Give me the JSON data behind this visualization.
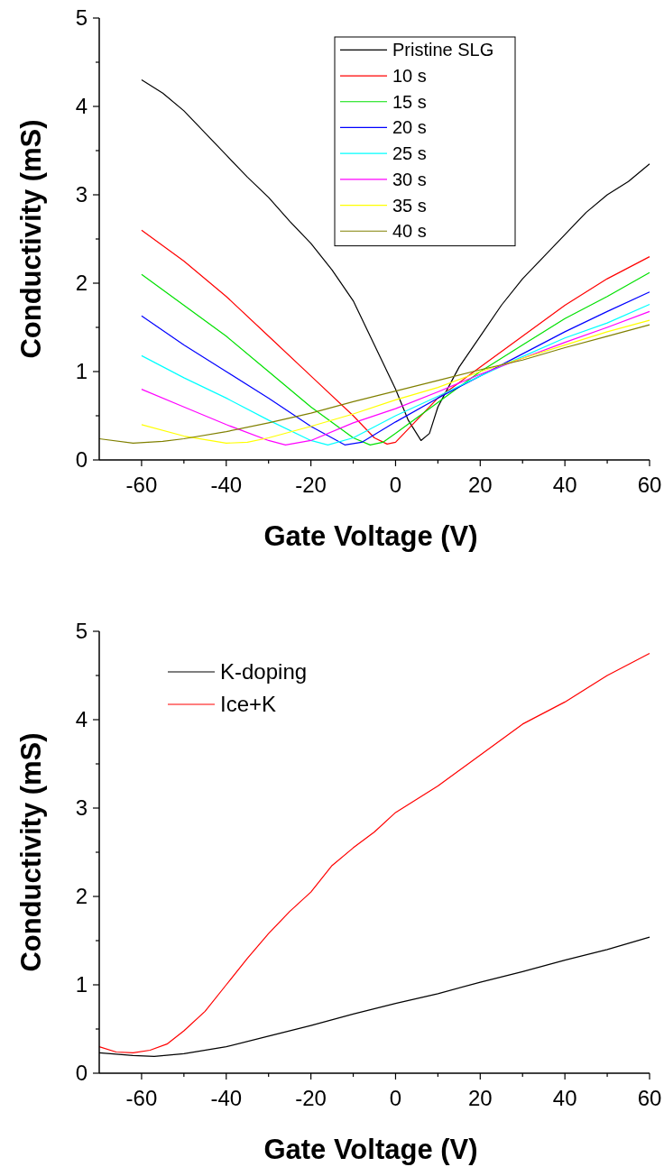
{
  "chart_data": [
    {
      "type": "line",
      "xlabel": "Gate Voltage (V)",
      "ylabel": "Conductivity (mS)",
      "xlim": [
        -70,
        60
      ],
      "ylim": [
        0,
        5
      ],
      "xticks": [
        -60,
        {
          "value": -50,
          "label": null
        },
        -40,
        {
          "value": -30,
          "label": null
        },
        -20,
        {
          "value": -10,
          "label": null
        },
        0,
        {
          "value": 10,
          "label": null
        },
        20,
        {
          "value": 30,
          "label": null
        },
        40,
        {
          "value": 50,
          "label": null
        },
        60
      ],
      "yticks": [
        0,
        {
          "value": 0.5,
          "label": null
        },
        1,
        {
          "value": 1.5,
          "label": null
        },
        2,
        {
          "value": 2.5,
          "label": null
        },
        3,
        {
          "value": 3.5,
          "label": null
        },
        4,
        {
          "value": 4.5,
          "label": null
        },
        5
      ],
      "grid": false,
      "legend": "top right",
      "line_style": "solid",
      "series": [
        {
          "name": "Pristine SLG",
          "color": "#000000",
          "x": [
            -60,
            -55,
            -50,
            -45,
            -40,
            -35,
            -30,
            -25,
            -20,
            -15,
            -10,
            -5,
            0,
            3,
            6,
            8,
            10,
            15,
            20,
            25,
            30,
            35,
            40,
            45,
            50,
            55,
            60
          ],
          "values": [
            4.3,
            4.15,
            3.95,
            3.7,
            3.45,
            3.2,
            2.97,
            2.7,
            2.45,
            2.15,
            1.8,
            1.3,
            0.8,
            0.45,
            0.22,
            0.3,
            0.6,
            1.05,
            1.4,
            1.75,
            2.05,
            2.3,
            2.55,
            2.8,
            3.0,
            3.15,
            3.35
          ]
        },
        {
          "name": "10 s",
          "color": "#ff0000",
          "x": [
            -60,
            -50,
            -40,
            -30,
            -20,
            -10,
            -5,
            -2,
            0,
            5,
            10,
            20,
            30,
            40,
            50,
            60
          ],
          "values": [
            2.6,
            2.25,
            1.85,
            1.4,
            0.95,
            0.5,
            0.25,
            0.18,
            0.2,
            0.45,
            0.7,
            1.05,
            1.4,
            1.75,
            2.05,
            2.3
          ]
        },
        {
          "name": "15 s",
          "color": "#00e000",
          "x": [
            -60,
            -50,
            -40,
            -30,
            -20,
            -10,
            -6,
            -3,
            0,
            10,
            20,
            30,
            40,
            50,
            60
          ],
          "values": [
            2.1,
            1.75,
            1.4,
            1.0,
            0.6,
            0.25,
            0.17,
            0.2,
            0.3,
            0.65,
            1.0,
            1.3,
            1.6,
            1.85,
            2.12
          ]
        },
        {
          "name": "20 s",
          "color": "#0000ff",
          "x": [
            -60,
            -50,
            -40,
            -30,
            -20,
            -12,
            -8,
            0,
            10,
            20,
            30,
            40,
            50,
            60
          ],
          "values": [
            1.63,
            1.3,
            1.0,
            0.7,
            0.38,
            0.17,
            0.2,
            0.43,
            0.7,
            0.95,
            1.2,
            1.45,
            1.68,
            1.9
          ]
        },
        {
          "name": "25 s",
          "color": "#00ffff",
          "x": [
            -60,
            -50,
            -40,
            -30,
            -20,
            -16,
            -10,
            0,
            10,
            20,
            30,
            40,
            50,
            60
          ],
          "values": [
            1.18,
            0.93,
            0.7,
            0.45,
            0.22,
            0.17,
            0.25,
            0.5,
            0.72,
            0.95,
            1.17,
            1.38,
            1.55,
            1.76
          ]
        },
        {
          "name": "30 s",
          "color": "#ff00ff",
          "x": [
            -60,
            -50,
            -40,
            -30,
            -26,
            -20,
            -10,
            0,
            10,
            20,
            30,
            40,
            50,
            60
          ],
          "values": [
            0.8,
            0.6,
            0.4,
            0.22,
            0.17,
            0.22,
            0.42,
            0.58,
            0.77,
            0.97,
            1.15,
            1.33,
            1.5,
            1.68
          ]
        },
        {
          "name": "35 s",
          "color": "#ffff00",
          "x": [
            -60,
            -50,
            -40,
            -35,
            -30,
            -20,
            -10,
            0,
            10,
            20,
            30,
            40,
            50,
            60
          ],
          "values": [
            0.4,
            0.27,
            0.19,
            0.2,
            0.25,
            0.38,
            0.52,
            0.68,
            0.82,
            1.0,
            1.15,
            1.3,
            1.45,
            1.58
          ]
        },
        {
          "name": "40 s",
          "color": "#808000",
          "x": [
            -70,
            -62,
            -55,
            -50,
            -40,
            -30,
            -20,
            -10,
            0,
            10,
            20,
            30,
            40,
            50,
            60
          ],
          "values": [
            0.24,
            0.19,
            0.21,
            0.24,
            0.32,
            0.42,
            0.53,
            0.66,
            0.78,
            0.9,
            1.02,
            1.13,
            1.27,
            1.4,
            1.53
          ]
        }
      ]
    },
    {
      "type": "line",
      "xlabel": "Gate Voltage (V)",
      "ylabel": "Conductivity (mS)",
      "xlim": [
        -70,
        60
      ],
      "ylim": [
        0,
        5
      ],
      "xticks": [
        -60,
        {
          "value": -50,
          "label": null
        },
        -40,
        {
          "value": -30,
          "label": null
        },
        -20,
        {
          "value": -10,
          "label": null
        },
        0,
        {
          "value": 10,
          "label": null
        },
        20,
        {
          "value": 30,
          "label": null
        },
        40,
        {
          "value": 50,
          "label": null
        },
        60
      ],
      "yticks": [
        0,
        {
          "value": 0.5,
          "label": null
        },
        1,
        {
          "value": 1.5,
          "label": null
        },
        2,
        {
          "value": 2.5,
          "label": null
        },
        3,
        {
          "value": 3.5,
          "label": null
        },
        4,
        {
          "value": 4.5,
          "label": null
        },
        5
      ],
      "grid": false,
      "legend": "top left",
      "line_style": "solid",
      "series": [
        {
          "name": "K-doping",
          "color": "#000000",
          "x": [
            -70,
            -62,
            -57,
            -50,
            -40,
            -30,
            -20,
            -10,
            0,
            10,
            20,
            30,
            40,
            50,
            60
          ],
          "values": [
            0.23,
            0.2,
            0.19,
            0.22,
            0.3,
            0.42,
            0.54,
            0.67,
            0.79,
            0.9,
            1.03,
            1.15,
            1.28,
            1.4,
            1.54
          ]
        },
        {
          "name": "Ice+K",
          "color": "#ff0000",
          "x": [
            -70,
            -66,
            -62,
            -58,
            -54,
            -50,
            -45,
            -40,
            -35,
            -30,
            -25,
            -20,
            -15,
            -10,
            -5,
            0,
            10,
            20,
            30,
            40,
            50,
            60
          ],
          "values": [
            0.3,
            0.24,
            0.23,
            0.26,
            0.33,
            0.48,
            0.7,
            1.0,
            1.3,
            1.58,
            1.83,
            2.05,
            2.35,
            2.55,
            2.73,
            2.95,
            3.25,
            3.6,
            3.95,
            4.2,
            4.5,
            4.75
          ]
        }
      ]
    }
  ]
}
